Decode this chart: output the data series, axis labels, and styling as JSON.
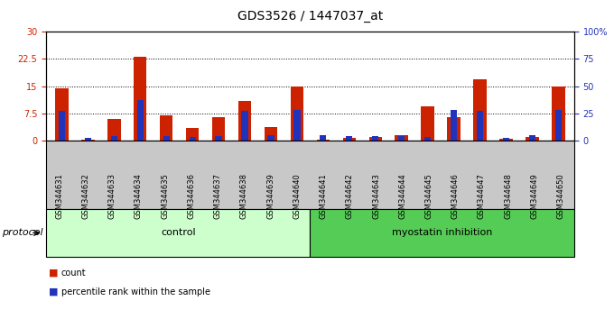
{
  "title": "GDS3526 / 1447037_at",
  "samples": [
    "GSM344631",
    "GSM344632",
    "GSM344633",
    "GSM344634",
    "GSM344635",
    "GSM344636",
    "GSM344637",
    "GSM344638",
    "GSM344639",
    "GSM344640",
    "GSM344641",
    "GSM344642",
    "GSM344643",
    "GSM344644",
    "GSM344645",
    "GSM344646",
    "GSM344647",
    "GSM344648",
    "GSM344649",
    "GSM344650"
  ],
  "count_values": [
    14.5,
    0.2,
    6.0,
    23.0,
    6.8,
    3.5,
    6.5,
    11.0,
    3.8,
    15.0,
    0.2,
    0.8,
    1.0,
    1.5,
    9.5,
    6.5,
    17.0,
    0.5,
    1.0,
    15.0
  ],
  "percentile_values": [
    27.0,
    2.5,
    4.0,
    37.0,
    4.0,
    3.5,
    4.0,
    27.0,
    5.0,
    28.0,
    5.0,
    4.0,
    4.0,
    4.0,
    3.5,
    28.0,
    27.0,
    2.5,
    5.0,
    28.0
  ],
  "control_count": 10,
  "myostatin_count": 10,
  "control_label": "control",
  "myostatin_label": "myostatin inhibition",
  "protocol_label": "protocol",
  "ylim_left": [
    0,
    30
  ],
  "ylim_right": [
    0,
    100
  ],
  "yticks_left": [
    0,
    7.5,
    15,
    22.5,
    30
  ],
  "ytick_labels_left": [
    "0",
    "7.5",
    "15",
    "22.5",
    "30"
  ],
  "yticks_right": [
    0,
    25,
    50,
    75,
    100
  ],
  "ytick_labels_right": [
    "0",
    "25",
    "50",
    "75",
    "100%"
  ],
  "bar_color_red": "#cc2200",
  "bar_color_blue": "#2233bb",
  "control_bg": "#ccffcc",
  "myostatin_bg": "#55cc55",
  "tick_bg": "#c8c8c8",
  "bar_width": 0.5,
  "blue_bar_width": 0.25,
  "legend_count": "count",
  "legend_percentile": "percentile rank within the sample",
  "title_fontsize": 10,
  "tick_fontsize": 7,
  "label_fontsize": 8,
  "proto_fontsize": 8
}
